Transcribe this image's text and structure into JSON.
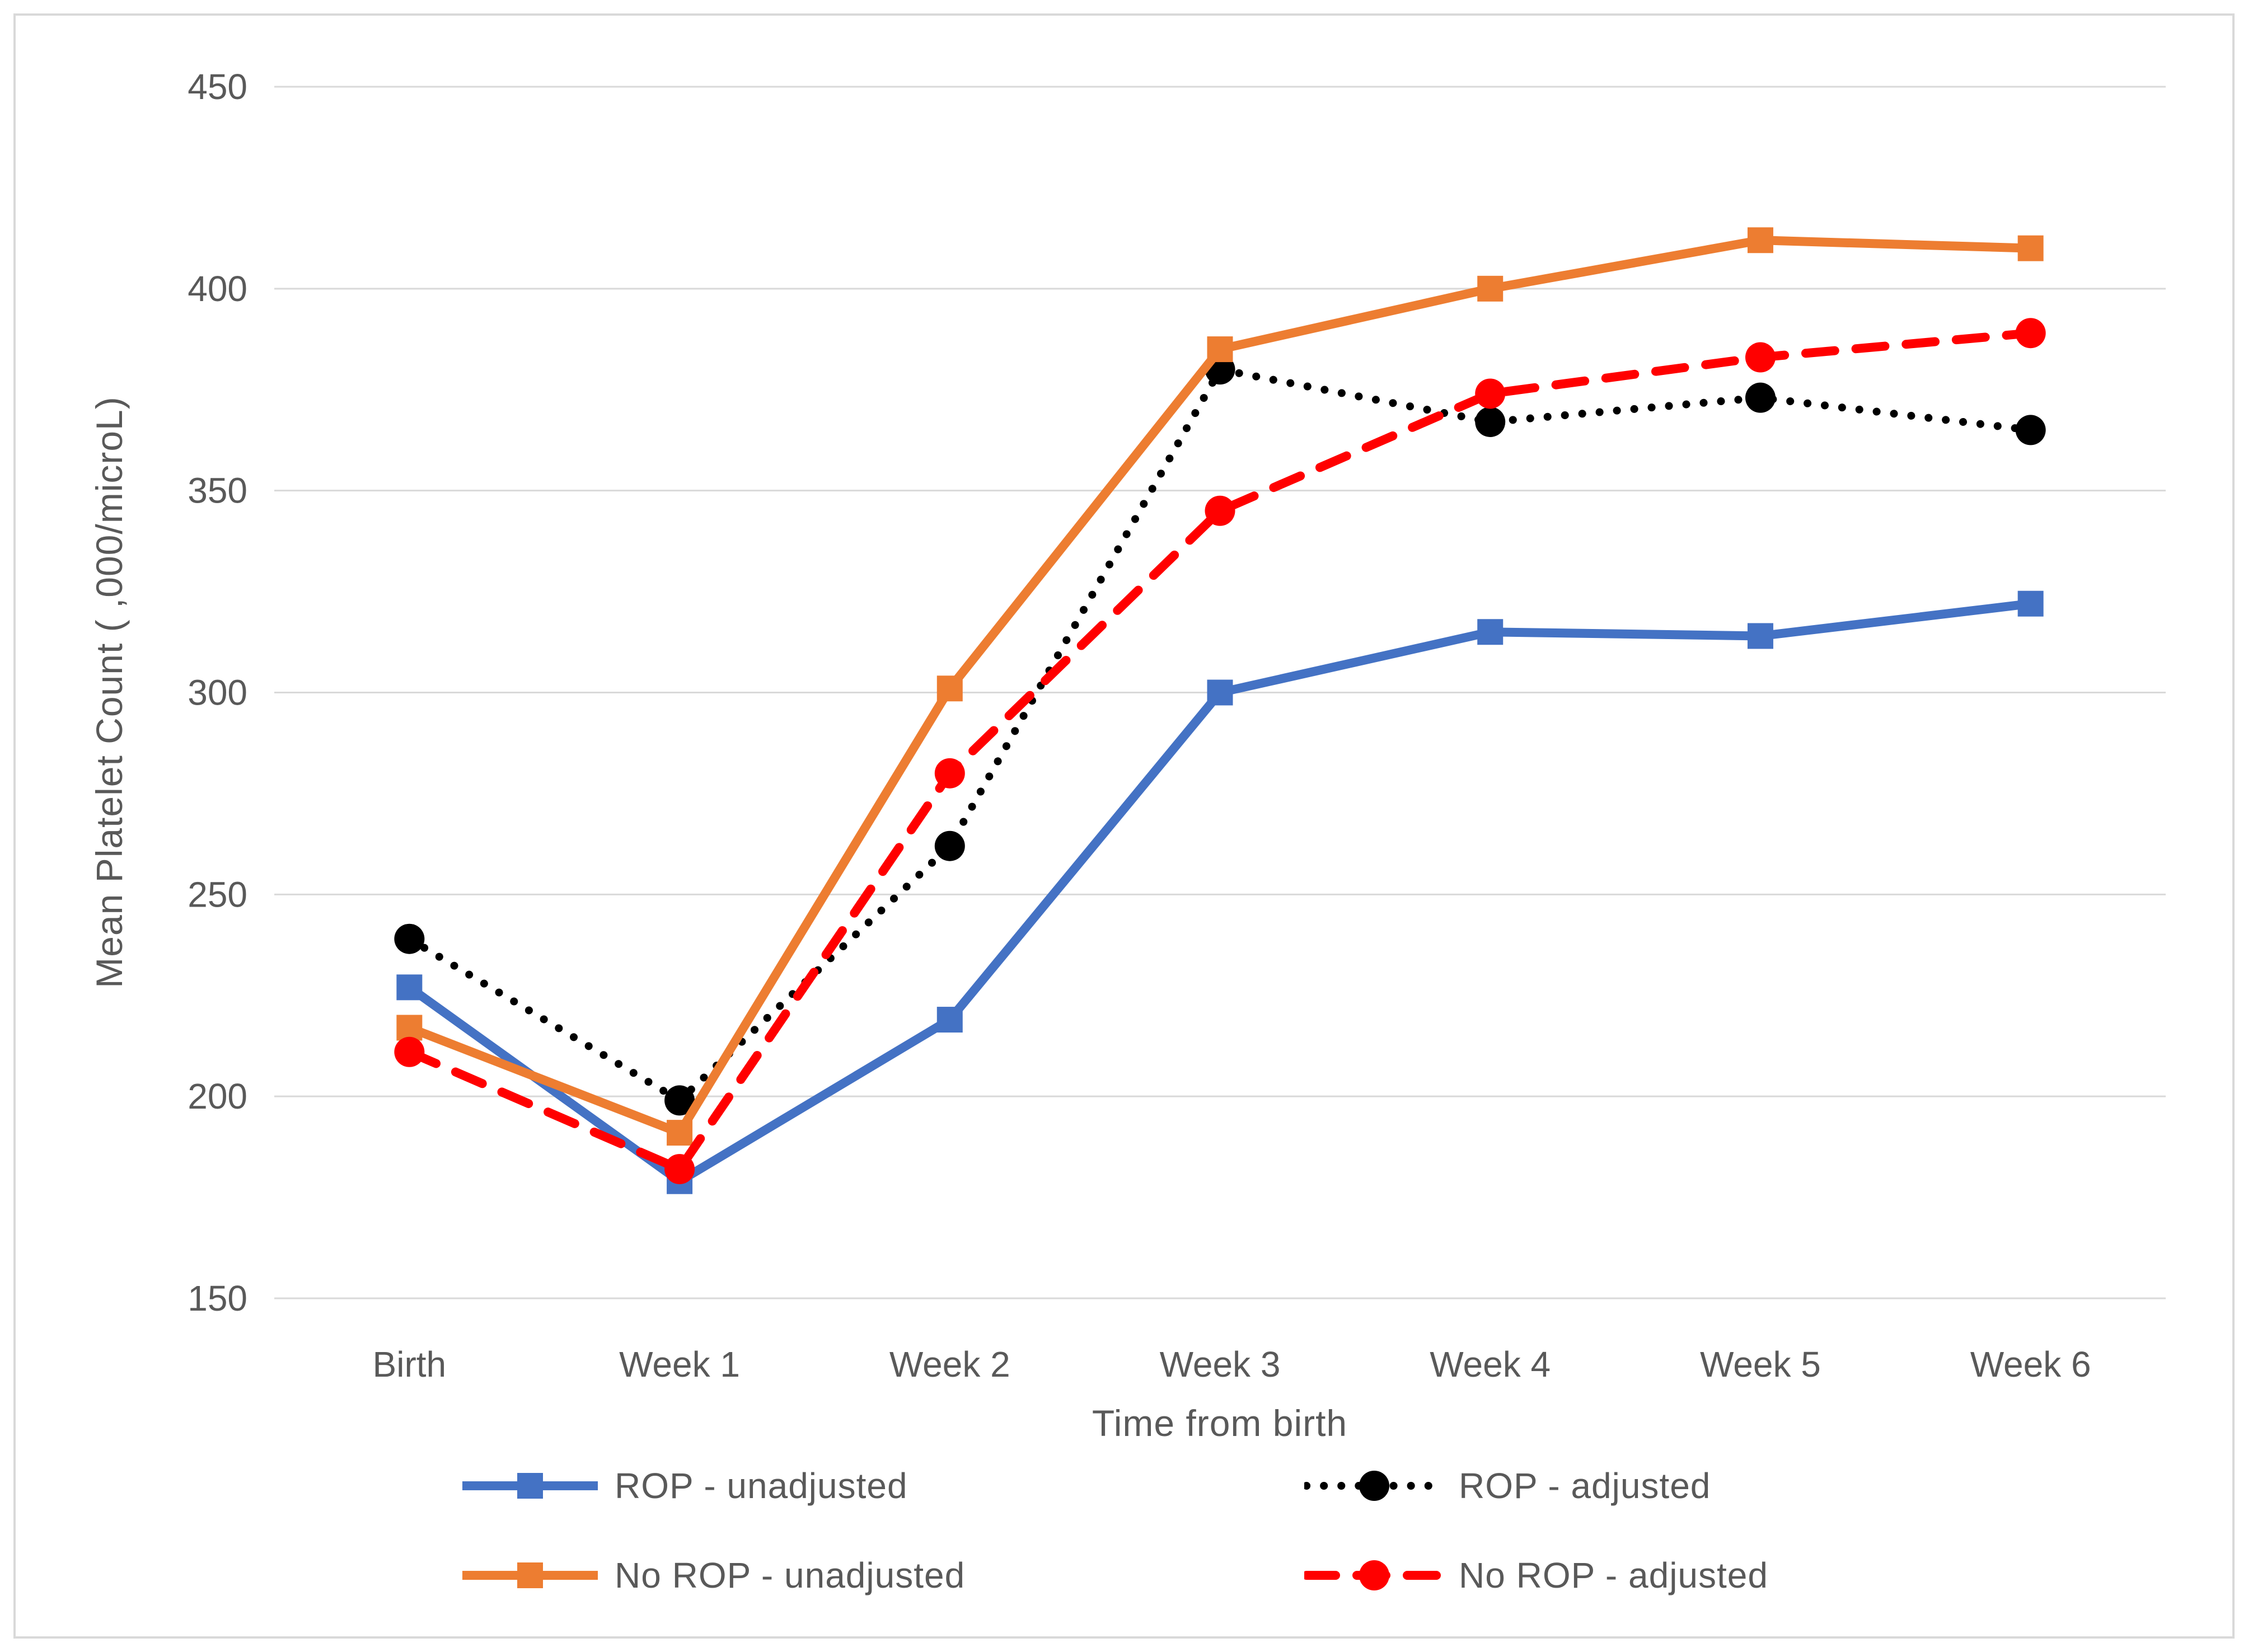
{
  "chart_data": {
    "type": "line",
    "title": "",
    "xlabel": "Time from birth",
    "ylabel": "Mean Platelet Count ( ,000/microL)",
    "categories": [
      "Birth",
      "Week 1",
      "Week 2",
      "Week 3",
      "Week 4",
      "Week 5",
      "Week 6"
    ],
    "ylim": [
      150,
      450
    ],
    "yticks": [
      150,
      200,
      250,
      300,
      350,
      400,
      450
    ],
    "grid": "horizontal-only",
    "legend_position": "bottom-two-columns",
    "series": [
      {
        "name": "ROP - unadjusted",
        "color": "#4472C4",
        "line": "solid",
        "marker": "square",
        "values": [
          227,
          179,
          219,
          300,
          315,
          314,
          322
        ]
      },
      {
        "name": "ROP - adjusted",
        "color": "#000000",
        "line": "dotted",
        "marker": "circle",
        "values": [
          239,
          199,
          262,
          380,
          367,
          373,
          365
        ]
      },
      {
        "name": "No ROP - unadjusted",
        "color": "#ED7D31",
        "line": "solid",
        "marker": "square",
        "values": [
          217,
          191,
          301,
          385,
          400,
          412,
          410
        ]
      },
      {
        "name": "No ROP - adjusted",
        "color": "#FF0000",
        "line": "dashed",
        "marker": "circle",
        "values": [
          211,
          182,
          280,
          345,
          374,
          383,
          389
        ]
      }
    ],
    "colors": {
      "gridline": "#D9D9D9",
      "chart_border": "#D9D9D9",
      "axis_text": "#595959",
      "background": "#FFFFFF"
    }
  }
}
